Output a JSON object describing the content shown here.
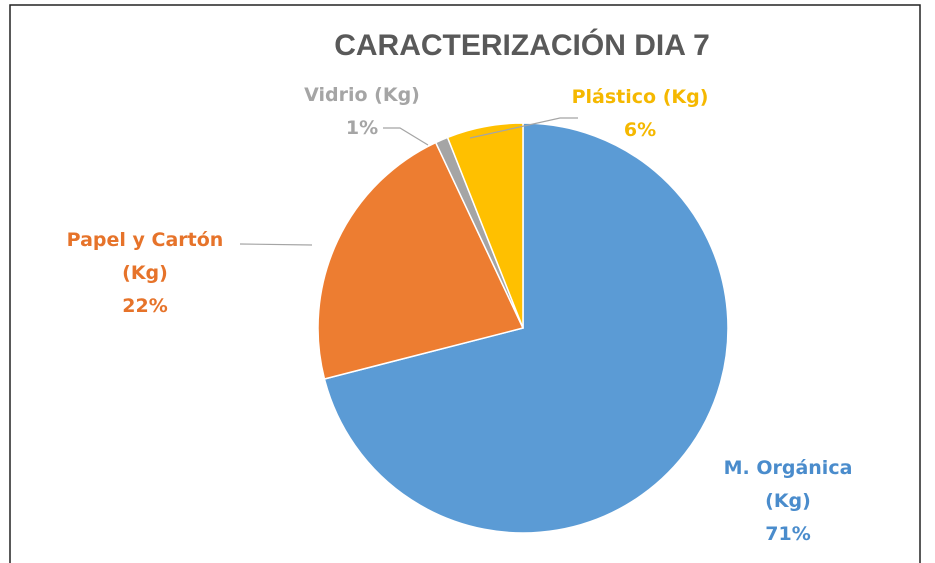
{
  "chart_data": {
    "type": "pie",
    "title": "CARACTERIZACIÓN DIA 7",
    "categories": [
      "M. Orgánica (Kg)",
      "Papel y Cartón (Kg)",
      "Vidrio (Kg)",
      "Plástico (Kg)"
    ],
    "values": [
      71,
      22,
      1,
      6
    ],
    "value_labels": [
      "71%",
      "22%",
      "1%",
      "6%"
    ],
    "colors": [
      "#5b9bd5",
      "#ed7d31",
      "#a5a5a5",
      "#ffc000"
    ]
  }
}
